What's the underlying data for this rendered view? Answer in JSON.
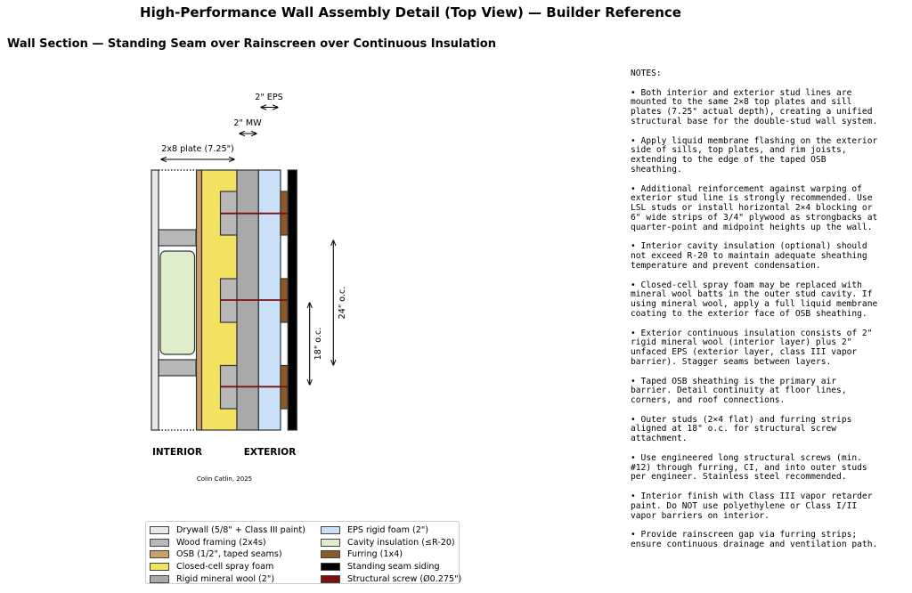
{
  "title": "High-Performance Wall Assembly Detail (Top View) — Builder Reference",
  "subtitle": "Wall Section — Standing Seam over Rainscreen over Continuous Insulation",
  "diagram": {
    "dims": {
      "plate": "2x8 plate (7.25\")",
      "mw": "2\" MW",
      "eps": "2\" EPS",
      "oc18": "18\" o.c.",
      "oc24": "24\" o.c."
    },
    "interior_label": "INTERIOR",
    "exterior_label": "EXTERIOR",
    "credit": "Colin Catlin, 2025"
  },
  "colors": {
    "drywall": "#e8e8e8",
    "framing": "#b8b8b8",
    "osb": "#c9a06a",
    "foam": "#f3e162",
    "mineral_wool": "#a9a9a9",
    "eps": "#c9e0f7",
    "cavity": "#deedcb",
    "furring": "#8b5a2b",
    "siding": "#000000",
    "screw": "#7a1010"
  },
  "legend": [
    {
      "label": "Drywall (5/8\" + Class III paint)",
      "color": "#e8e8e8"
    },
    {
      "label": "Wood framing (2x4s)",
      "color": "#b8b8b8"
    },
    {
      "label": "OSB (1/2\", taped seams)",
      "color": "#c9a06a"
    },
    {
      "label": "Closed-cell spray foam",
      "color": "#f3e162"
    },
    {
      "label": "Rigid mineral wool (2\")",
      "color": "#a9a9a9"
    },
    {
      "label": "EPS rigid foam (2\")",
      "color": "#c9e0f7"
    },
    {
      "label": "Cavity insulation (≤R-20)",
      "color": "#deedcb"
    },
    {
      "label": "Furring (1x4)",
      "color": "#8b5a2b"
    },
    {
      "label": "Standing seam siding",
      "color": "#000000"
    },
    {
      "label": "Structural screw (Ø0.275\")",
      "color": "#7a1010"
    }
  ],
  "notes": {
    "header": "NOTES:",
    "items": [
      "• Both interior and exterior stud lines are\nmounted to the same 2×8 top plates and sill\nplates (7.25\" actual depth), creating a unified\nstructural base for the double-stud wall system.",
      "• Apply liquid membrane flashing on the exterior\nside of sills, top plates, and rim joists,\nextending to the edge of the taped OSB\nsheathing.",
      "• Additional reinforcement against warping of\nexterior stud line is strongly recommended. Use\nLSL studs or install horizontal 2×4 blocking or\n6\" wide strips of 3/4\" plywood as strongbacks at\nquarter-point and midpoint heights up the wall.",
      "• Interior cavity insulation (optional) should\nnot exceed R-20 to maintain adequate sheathing\ntemperature and prevent condensation.",
      "• Closed-cell spray foam may be replaced with\nmineral wool batts in the outer stud cavity. If\nusing mineral wool, apply a full liquid membrane\ncoating to the exterior face of OSB sheathing.",
      "• Exterior continuous insulation consists of 2\"\nrigid mineral wool (interior layer) plus 2\"\nunfaced EPS (exterior layer, class III vapor\nbarrier). Stagger seams between layers.",
      "• Taped OSB sheathing is the primary air\nbarrier. Detail continuity at floor lines,\ncorners, and roof connections.",
      "• Outer studs (2×4 flat) and furring strips\naligned at 18\" o.c. for structural screw\nattachment.",
      "• Use engineered long structural screws (min.\n#12) through furring, CI, and into outer studs\nper engineer. Stainless steel recommended.",
      "• Interior finish with Class III vapor retarder\npaint. Do NOT use polyethylene or Class I/II\nvapor barriers on interior.",
      "• Provide rainscreen gap via furring strips;\nensure continuous drainage and ventilation path."
    ]
  }
}
